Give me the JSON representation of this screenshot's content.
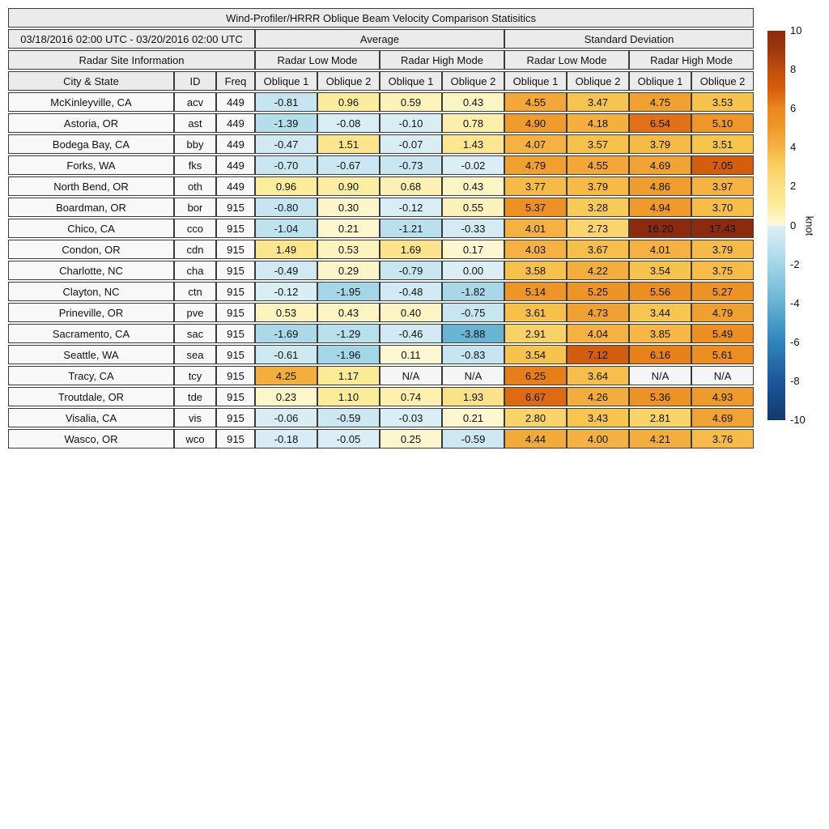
{
  "title": "Wind-Profiler/HRRR Oblique Beam Velocity Comparison Statisitics",
  "header": {
    "date_range": "03/18/2016 02:00 UTC - 03/20/2016 02:00 UTC",
    "group_average": "Average",
    "group_std": "Standard Deviation",
    "site_info": "Radar Site Information",
    "mode_headers": [
      "Radar Low Mode",
      "Radar High Mode",
      "Radar Low Mode",
      "Radar High Mode"
    ],
    "col_city": "City & State",
    "col_id": "ID",
    "col_freq": "Freq",
    "oblique_headers": [
      "Oblique 1",
      "Oblique 2",
      "Oblique 1",
      "Oblique 2",
      "Oblique 1",
      "Oblique 2",
      "Oblique 1",
      "Oblique 2"
    ]
  },
  "chart_data": {
    "type": "heatmap",
    "title": "Wind-Profiler/HRRR Oblique Beam Velocity Comparison Statisitics",
    "time_range": "03/18/2016 02:00 UTC - 03/20/2016 02:00 UTC",
    "unit": "knot",
    "color_limits": [
      -10,
      10
    ],
    "columns": [
      "Avg Low Oblique 1",
      "Avg Low Oblique 2",
      "Avg High Oblique 1",
      "Avg High Oblique 2",
      "Std Low Oblique 1",
      "Std Low Oblique 2",
      "Std High Oblique 1",
      "Std High Oblique 2"
    ],
    "rows": [
      {
        "city": "McKinleyville, CA",
        "id": "acv",
        "freq": "449",
        "values": [
          -0.81,
          0.96,
          0.59,
          0.43,
          4.55,
          3.47,
          4.75,
          3.53
        ]
      },
      {
        "city": "Astoria, OR",
        "id": "ast",
        "freq": "449",
        "values": [
          -1.39,
          -0.08,
          -0.1,
          0.78,
          4.9,
          4.18,
          6.54,
          5.1
        ]
      },
      {
        "city": "Bodega Bay, CA",
        "id": "bby",
        "freq": "449",
        "values": [
          -0.47,
          1.51,
          -0.07,
          1.43,
          4.07,
          3.57,
          3.79,
          3.51
        ]
      },
      {
        "city": "Forks, WA",
        "id": "fks",
        "freq": "449",
        "values": [
          -0.7,
          -0.67,
          -0.73,
          -0.02,
          4.79,
          4.55,
          4.69,
          7.05
        ]
      },
      {
        "city": "North Bend, OR",
        "id": "oth",
        "freq": "449",
        "values": [
          0.96,
          0.9,
          0.68,
          0.43,
          3.77,
          3.79,
          4.86,
          3.97
        ]
      },
      {
        "city": "Boardman, OR",
        "id": "bor",
        "freq": "915",
        "values": [
          -0.8,
          0.3,
          -0.12,
          0.55,
          5.37,
          3.28,
          4.94,
          3.7
        ]
      },
      {
        "city": "Chico, CA",
        "id": "cco",
        "freq": "915",
        "values": [
          -1.04,
          0.21,
          -1.21,
          -0.33,
          4.01,
          2.73,
          16.2,
          17.43
        ]
      },
      {
        "city": "Condon, OR",
        "id": "cdn",
        "freq": "915",
        "values": [
          1.49,
          0.53,
          1.69,
          0.17,
          4.03,
          3.67,
          4.01,
          3.79
        ]
      },
      {
        "city": "Charlotte, NC",
        "id": "cha",
        "freq": "915",
        "values": [
          -0.49,
          0.29,
          -0.79,
          0.0,
          3.58,
          4.22,
          3.54,
          3.75
        ]
      },
      {
        "city": "Clayton, NC",
        "id": "ctn",
        "freq": "915",
        "values": [
          -0.12,
          -1.95,
          -0.48,
          -1.82,
          5.14,
          5.25,
          5.56,
          5.27
        ]
      },
      {
        "city": "Prineville, OR",
        "id": "pve",
        "freq": "915",
        "values": [
          0.53,
          0.43,
          0.4,
          -0.75,
          3.61,
          4.73,
          3.44,
          4.79
        ]
      },
      {
        "city": "Sacramento, CA",
        "id": "sac",
        "freq": "915",
        "values": [
          -1.69,
          -1.29,
          -0.46,
          -3.88,
          2.91,
          4.04,
          3.85,
          5.49
        ]
      },
      {
        "city": "Seattle, WA",
        "id": "sea",
        "freq": "915",
        "values": [
          -0.61,
          -1.96,
          0.11,
          -0.83,
          3.54,
          7.12,
          6.16,
          5.61
        ]
      },
      {
        "city": "Tracy, CA",
        "id": "tcy",
        "freq": "915",
        "values": [
          4.25,
          1.17,
          "N/A",
          "N/A",
          6.25,
          3.64,
          "N/A",
          "N/A"
        ]
      },
      {
        "city": "Troutdale, OR",
        "id": "tde",
        "freq": "915",
        "values": [
          0.23,
          1.1,
          0.74,
          1.93,
          6.67,
          4.26,
          5.36,
          4.93
        ]
      },
      {
        "city": "Visalia, CA",
        "id": "vis",
        "freq": "915",
        "values": [
          -0.06,
          -0.59,
          -0.03,
          0.21,
          2.8,
          3.43,
          2.81,
          4.69
        ]
      },
      {
        "city": "Wasco, OR",
        "id": "wco",
        "freq": "915",
        "values": [
          -0.18,
          -0.05,
          0.25,
          -0.59,
          4.44,
          4.0,
          4.21,
          3.76
        ]
      }
    ]
  },
  "colorbar": {
    "label": "knot",
    "min": -10,
    "max": 10,
    "ticks": [
      10,
      8,
      6,
      4,
      2,
      0,
      -2,
      -4,
      -6,
      -8,
      -10
    ],
    "na_color": "#f5f5f5",
    "warm_stops": [
      [
        0,
        "#fdf8d8"
      ],
      [
        0.5,
        "#fdf3c0"
      ],
      [
        1,
        "#fcec9a"
      ],
      [
        1.5,
        "#fbe68e"
      ],
      [
        2,
        "#fbe087"
      ],
      [
        2.5,
        "#fad974"
      ],
      [
        3,
        "#f9d164"
      ],
      [
        3.5,
        "#f7c44e"
      ],
      [
        4,
        "#f5b242"
      ],
      [
        4.5,
        "#f2a93a"
      ],
      [
        5,
        "#ee982a"
      ],
      [
        5.5,
        "#ec8f23"
      ],
      [
        6,
        "#ea8a1d"
      ],
      [
        6.5,
        "#e27117"
      ],
      [
        7,
        "#d55f0e"
      ],
      [
        8,
        "#bf4e0b"
      ],
      [
        9,
        "#9e380e"
      ],
      [
        10,
        "#8c2a10"
      ]
    ],
    "cold_stops": [
      [
        -10,
        "#123a6d"
      ],
      [
        -9,
        "#184883"
      ],
      [
        -8,
        "#1e5699"
      ],
      [
        -7,
        "#276da9"
      ],
      [
        -6,
        "#2f84bb"
      ],
      [
        -5,
        "#499bc7"
      ],
      [
        -4,
        "#64b2d2"
      ],
      [
        -3,
        "#86c5dd"
      ],
      [
        -2,
        "#a2d5e7"
      ],
      [
        -1.5,
        "#b2dcea"
      ],
      [
        -1,
        "#c0e3ef"
      ],
      [
        -0.5,
        "#d0e9f2"
      ],
      [
        0,
        "#dbeef5"
      ]
    ]
  }
}
